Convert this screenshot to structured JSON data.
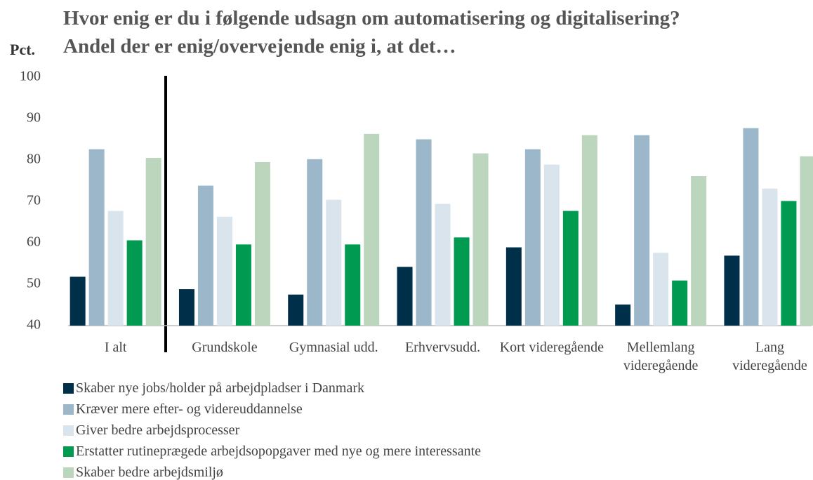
{
  "chart_data": {
    "type": "bar",
    "title": "Hvor enig er du i følgende udsagn om automatisering og digitalisering? Andel der er enig/overvejende enig i, at det…",
    "y_label": "Pct.",
    "categories": [
      "I alt",
      "Grundskole",
      "Gymnasial udd.",
      "Erhvervsudd.",
      "Kort videregående",
      "Mellemlang videregående",
      "Lang videregående"
    ],
    "series": [
      {
        "name": "Skaber nye jobs/holder på arbejdpladser i Danmark",
        "color": "#002f4a",
        "values": [
          51.8,
          48.8,
          47.5,
          54.2,
          58.9,
          45.1,
          56.9
        ]
      },
      {
        "name": "Kræver mere efter- og videreuddannelse",
        "color": "#9bb7c9",
        "values": [
          82.6,
          73.8,
          80.2,
          85.0,
          82.6,
          86.0,
          87.7
        ]
      },
      {
        "name": "Giver bedre arbejdsprocesser",
        "color": "#d9e4ec",
        "values": [
          67.7,
          66.3,
          70.4,
          69.4,
          78.9,
          57.6,
          73.1
        ]
      },
      {
        "name": "Erstatter rutineprægede arbejdsopopgaver med nye og mere interessante",
        "color": "#009a50",
        "values": [
          60.6,
          59.6,
          59.6,
          61.3,
          67.7,
          50.9,
          70.1
        ]
      },
      {
        "name": "Skaber bedre arbejdsmiljø",
        "color": "#bcd5bd",
        "values": [
          80.5,
          79.5,
          86.3,
          81.6,
          86.0,
          76.1,
          80.9
        ]
      }
    ],
    "ylim": [
      40,
      100
    ],
    "yticks": [
      40,
      50,
      60,
      70,
      80,
      90,
      100
    ],
    "grid": false,
    "legend": "bottom"
  }
}
